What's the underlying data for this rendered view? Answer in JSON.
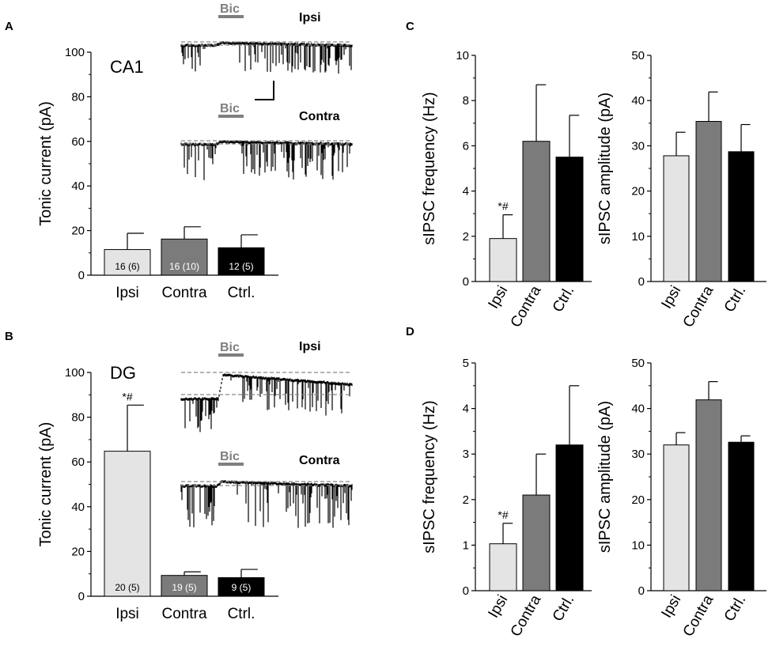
{
  "colors": {
    "ipsi": "#e4e4e4",
    "contra": "#7b7b7b",
    "ctrl": "#000000",
    "axis": "#000000",
    "bic": "#7f7f7f",
    "dashed": "#888888"
  },
  "panels": {
    "A": {
      "letter": "A",
      "region": "CA1",
      "traces": [
        {
          "bic": "Bic",
          "label": "Ipsi"
        },
        {
          "bic": "Bic",
          "label": "Contra"
        }
      ]
    },
    "B": {
      "letter": "B",
      "region": "DG",
      "traces": [
        {
          "bic": "Bic",
          "label": "Ipsi"
        },
        {
          "bic": "Bic",
          "label": "Contra"
        }
      ]
    },
    "C": {
      "letter": "C"
    },
    "D": {
      "letter": "D"
    }
  },
  "chart_data": [
    {
      "id": "A-tonic",
      "type": "bar",
      "ylabel": "Tonic current (pA)",
      "ylim": [
        0,
        100
      ],
      "yticks": [
        0,
        20,
        40,
        60,
        80,
        100
      ],
      "categories": [
        "Ipsi",
        "Contra",
        "Ctrl."
      ],
      "values": [
        11.5,
        16.2,
        12.3
      ],
      "errors": [
        7.3,
        5.5,
        5.8
      ],
      "bar_labels": [
        "16 (6)",
        "16 (10)",
        "12 (5)"
      ],
      "significance": [
        "",
        "",
        ""
      ]
    },
    {
      "id": "B-tonic",
      "type": "bar",
      "ylabel": "Tonic current (pA)",
      "ylim": [
        0,
        100
      ],
      "yticks": [
        0,
        20,
        40,
        60,
        80,
        100
      ],
      "categories": [
        "Ipsi",
        "Contra",
        "Ctrl."
      ],
      "values": [
        64.8,
        9.3,
        8.3
      ],
      "errors": [
        20.6,
        1.6,
        3.7
      ],
      "bar_labels": [
        "20 (5)",
        "19 (5)",
        "9 (5)"
      ],
      "significance": [
        "*#",
        "",
        ""
      ]
    },
    {
      "id": "C-freq",
      "type": "bar",
      "ylabel": "sIPSC frequency (Hz)",
      "ylim": [
        0,
        10
      ],
      "yticks": [
        0,
        2,
        4,
        6,
        8,
        10
      ],
      "categories": [
        "Ipsi",
        "Contra",
        "Ctrl."
      ],
      "values": [
        1.9,
        6.2,
        5.5
      ],
      "errors": [
        1.05,
        2.5,
        1.85
      ],
      "significance": [
        "*#",
        "",
        ""
      ]
    },
    {
      "id": "C-amp",
      "type": "bar",
      "ylabel": "sIPSC amplitude (pA)",
      "ylim": [
        0,
        50
      ],
      "yticks": [
        0,
        10,
        20,
        30,
        40,
        50
      ],
      "categories": [
        "Ipsi",
        "Contra",
        "Ctrl."
      ],
      "values": [
        27.8,
        35.4,
        28.7
      ],
      "errors": [
        5.2,
        6.5,
        6.0
      ],
      "significance": [
        "",
        "",
        ""
      ]
    },
    {
      "id": "D-freq",
      "type": "bar",
      "ylabel": "sIPSC frequency (Hz)",
      "ylim": [
        0,
        5
      ],
      "yticks": [
        0,
        1,
        2,
        3,
        4,
        5
      ],
      "categories": [
        "Ipsi",
        "Contra",
        "Ctrl."
      ],
      "values": [
        1.03,
        2.1,
        3.2
      ],
      "errors": [
        0.45,
        0.9,
        1.3
      ],
      "significance": [
        "*#",
        "",
        ""
      ]
    },
    {
      "id": "D-amp",
      "type": "bar",
      "ylabel": "sIPSC amplitude (pA)",
      "ylim": [
        0,
        50
      ],
      "yticks": [
        0,
        10,
        20,
        30,
        40,
        50
      ],
      "categories": [
        "Ipsi",
        "Contra",
        "Ctrl."
      ],
      "values": [
        32.0,
        41.9,
        32.6
      ],
      "errors": [
        2.7,
        4.0,
        1.4
      ],
      "significance": [
        "",
        "",
        ""
      ]
    }
  ]
}
